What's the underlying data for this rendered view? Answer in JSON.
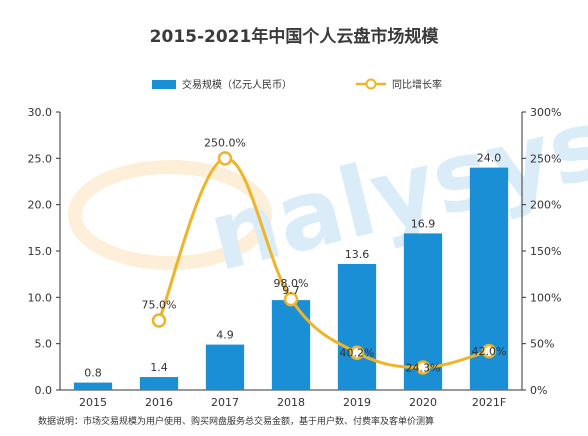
{
  "chart_data": {
    "type": "bar",
    "title": "2015-2021年中国个人云盘市场规模",
    "categories": [
      "2015",
      "2016",
      "2017",
      "2018",
      "2019",
      "2020",
      "2021F"
    ],
    "series": [
      {
        "name": "交易规模（亿元人民币）",
        "type": "bar",
        "axis": "left",
        "values": [
          0.8,
          1.4,
          4.9,
          9.7,
          13.6,
          16.9,
          24.0
        ],
        "labels": [
          "0.8",
          "1.4",
          "4.9",
          "9.7",
          "13.6",
          "16.9",
          "24.0"
        ]
      },
      {
        "name": "同比增长率",
        "type": "line",
        "axis": "right",
        "values": [
          null,
          75.0,
          250.0,
          98.0,
          40.2,
          24.3,
          42.0
        ],
        "labels": [
          "",
          "75.0%",
          "250.0%",
          "98.0%",
          "40.2%",
          "24.3%",
          "42.0%"
        ]
      }
    ],
    "y_left": {
      "min": 0,
      "max": 30,
      "ticks": [
        "0.0",
        "5.0",
        "10.0",
        "15.0",
        "20.0",
        "25.0",
        "30.0"
      ]
    },
    "y_right": {
      "min": 0,
      "max": 300,
      "ticks": [
        "0%",
        "50%",
        "100%",
        "150%",
        "200%",
        "250%",
        "300%"
      ]
    },
    "colors": {
      "bar": "#1a8fd6",
      "line": "#f0b429",
      "marker_fill": "#ffffff"
    },
    "legend_position": "top-center",
    "grid": false,
    "watermark": "Analysys 易观分析"
  },
  "footnote": "数据说明：市场交易规模为用户使用、购买网盘服务总交易金额，基于用户数、付费率及客单价测算"
}
